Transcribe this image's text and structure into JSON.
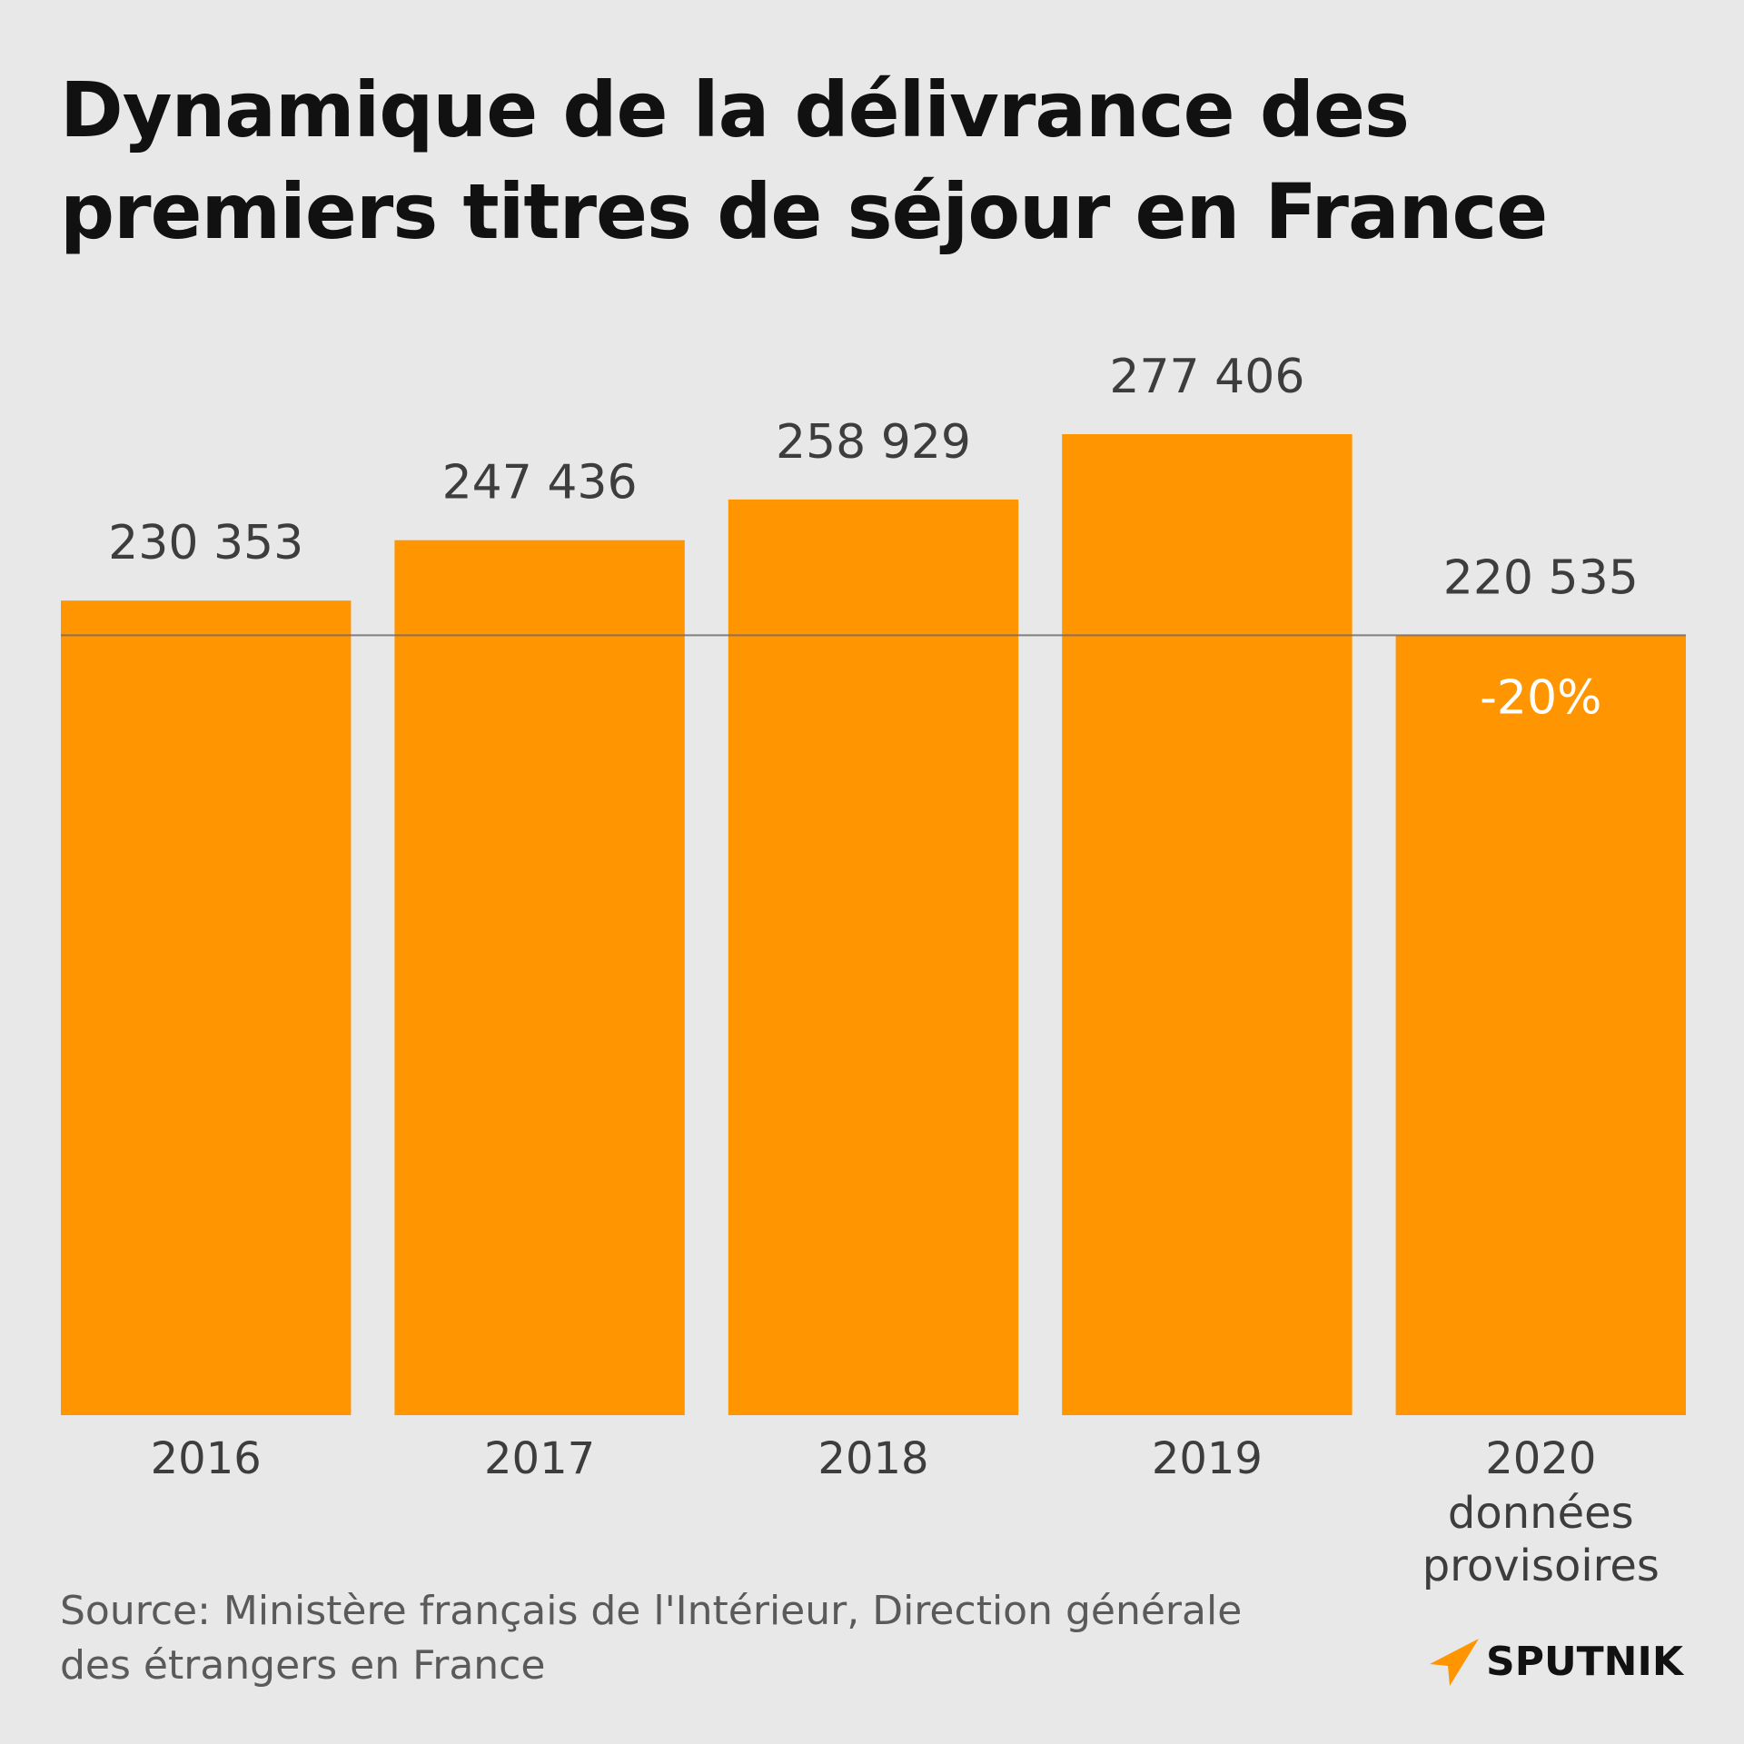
{
  "title": {
    "line1": "Dynamique de la délivrance des",
    "line2": "premiers titres de séjour en France"
  },
  "chart_data": {
    "type": "bar",
    "categories": [
      "2016",
      "2017",
      "2018",
      "2019",
      "2020"
    ],
    "category_sublabels": [
      "",
      "",
      "",
      "",
      "données provisoires"
    ],
    "category_sublabel_lines": [
      [],
      [],
      [],
      [],
      [
        "données",
        "provisoires"
      ]
    ],
    "values": [
      230353,
      247436,
      258929,
      277406,
      220535
    ],
    "value_labels": [
      "230 353",
      "247 436",
      "258 929",
      "277 406",
      "220 535"
    ],
    "reference_line": {
      "value": 220535
    },
    "annotations": [
      {
        "category": "2020",
        "text": "-20%"
      }
    ],
    "bar_color": "#ff9500",
    "ylim": [
      0,
      277406
    ],
    "xlabel": "",
    "ylabel": "",
    "grid": false,
    "legend": null
  },
  "source": {
    "line1": "Source: Ministère français de l'Intérieur, Direction générale",
    "line2": "des étrangers en France"
  },
  "logo": {
    "text": "SPUTNIK",
    "color": "#ff9500"
  }
}
